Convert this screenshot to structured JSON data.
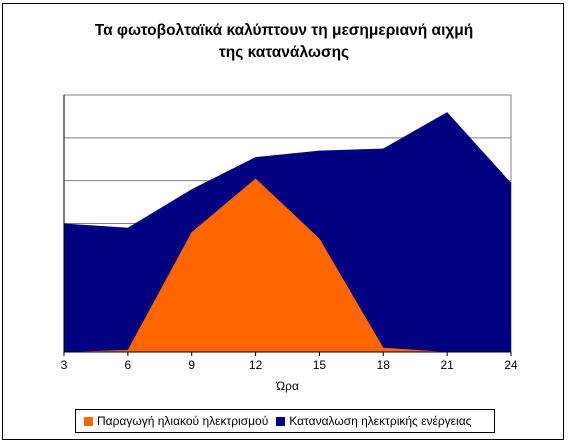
{
  "chart_data": {
    "type": "area",
    "title_lines": [
      "Τα φωτοβολταϊκά καλύπτουν τη μεσημεριανή αιχμή",
      "της κατανάλωσης"
    ],
    "xlabel": "Ώρα",
    "ylabel": "",
    "x": [
      3,
      6,
      9,
      12,
      15,
      18,
      21,
      24
    ],
    "ylim": [
      0,
      6
    ],
    "grid": true,
    "legend_position": "bottom",
    "series": [
      {
        "name": "Καταναλωση ηλεκτρικής ενέργειας",
        "color": "#000080",
        "values": [
          3.0,
          2.9,
          3.8,
          4.55,
          4.7,
          4.75,
          5.6,
          3.95
        ]
      },
      {
        "name": "Παραγωγή ηλιακού ηλεκτρισμού",
        "color": "#ff6600",
        "values": [
          0.0,
          0.05,
          2.8,
          4.05,
          2.65,
          0.1,
          0.0,
          0.0
        ]
      }
    ],
    "legend_order": [
      "Παραγωγή ηλιακού ηλεκτρισμού",
      "Καταναλωση ηλεκτρικής ενέργειας"
    ]
  },
  "colors": {
    "grid": "#808080",
    "frame": "#000000",
    "background": "#ffffff"
  }
}
